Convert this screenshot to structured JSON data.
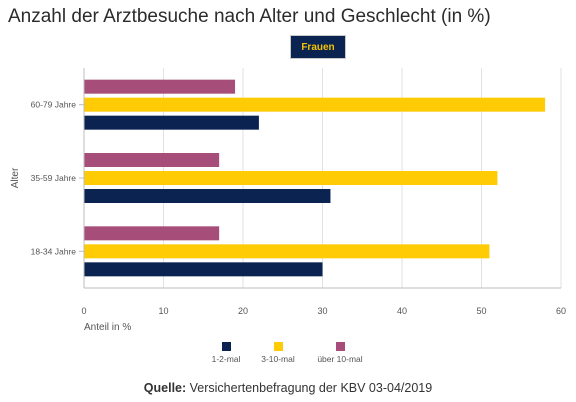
{
  "header": {
    "title": "Anzahl der Arztbesuche nach Alter und Geschlecht (in %)",
    "toggle_label": "Frauen"
  },
  "footer": {
    "source_label": "Quelle:",
    "source_text": " Versichertenbefragung der KBV 03-04/2019"
  },
  "colors": {
    "navy": "#0b2350",
    "yellow": "#ffcb05",
    "purple": "#a64d79",
    "grid": "#e2e2e2"
  },
  "chart_data": {
    "type": "bar",
    "orientation": "horizontal",
    "categories": [
      "60-79 Jahre",
      "35-59 Jahre",
      "18-34 Jahre"
    ],
    "series": [
      {
        "name": "über 10-mal",
        "color": "#a64d79",
        "values": [
          19,
          17,
          17
        ]
      },
      {
        "name": "3-10-mal",
        "color": "#ffcb05",
        "values": [
          58,
          52,
          51
        ]
      },
      {
        "name": "1-2-mal",
        "color": "#0b2350",
        "values": [
          22,
          31,
          30
        ]
      }
    ],
    "legend_order": [
      "1-2-mal",
      "3-10-mal",
      "über 10-mal"
    ],
    "xlabel": "Anteil in %",
    "ylabel": "Alter",
    "xlim": [
      0,
      60
    ],
    "xticks": [
      0,
      10,
      20,
      30,
      40,
      50,
      60
    ],
    "grid": "vertical",
    "legend_position": "bottom-center"
  }
}
